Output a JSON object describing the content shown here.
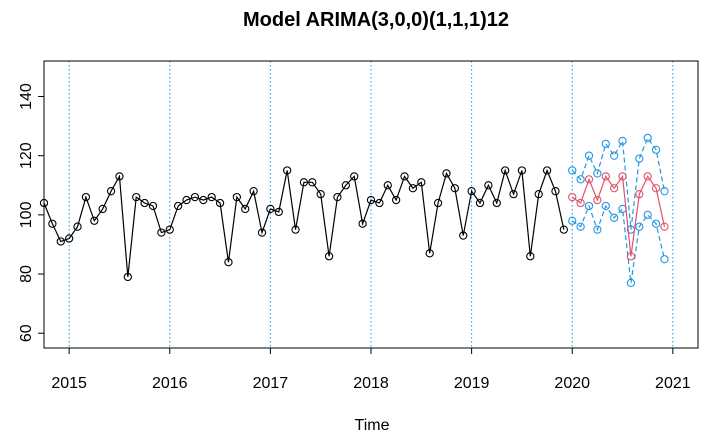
{
  "chart_data": {
    "type": "line",
    "title": "Model ARIMA(3,0,0)(1,1,1)12",
    "xlabel": "Time",
    "ylabel": "",
    "xlim": [
      2014.75,
      2021.25
    ],
    "ylim": [
      55,
      152
    ],
    "x_ticks": [
      2015,
      2016,
      2017,
      2018,
      2019,
      2020,
      2021
    ],
    "y_ticks": [
      60,
      80,
      100,
      120,
      140
    ],
    "vlines": [
      2015,
      2016,
      2017,
      2018,
      2019,
      2020,
      2021
    ],
    "colors": {
      "observed": "#000000",
      "forecast": "#DF536B",
      "interval": "#2297E6",
      "vline": "#2297E6"
    },
    "series": [
      {
        "role": "observed",
        "start": 2014.75,
        "values": [
          104,
          97,
          91,
          92,
          96,
          106,
          98,
          102,
          108,
          113,
          79,
          106,
          104,
          103,
          94,
          95,
          103,
          105,
          106,
          105,
          106,
          104,
          84,
          106,
          102,
          108,
          94,
          102,
          101,
          115,
          95,
          111,
          111,
          107,
          86,
          106,
          110,
          113,
          97,
          105,
          104,
          110,
          105,
          113,
          109,
          111,
          87,
          104,
          114,
          109,
          93,
          108,
          104,
          110,
          104,
          115,
          107,
          115,
          86,
          107,
          115,
          108,
          95
        ]
      },
      {
        "role": "forecast",
        "start": 2020.0,
        "values": [
          106,
          104,
          112,
          105,
          113,
          109,
          113,
          86,
          107,
          113,
          109,
          96
        ]
      },
      {
        "role": "interval",
        "start": 2020.0,
        "values": [
          115,
          112,
          120,
          114,
          124,
          120,
          125,
          95,
          119,
          126,
          122,
          108
        ]
      },
      {
        "role": "interval",
        "start": 2020.0,
        "values": [
          98,
          96,
          103,
          95,
          103,
          99,
          102,
          77,
          96,
          100,
          97,
          85
        ]
      }
    ]
  }
}
